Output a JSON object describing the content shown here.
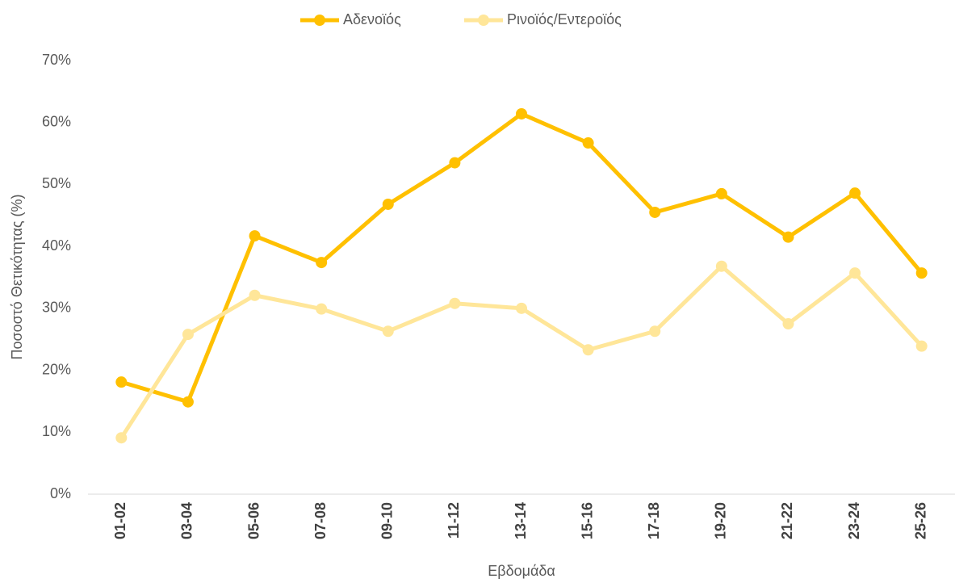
{
  "chart_data": {
    "type": "line",
    "x_label": "Εβδομάδα",
    "y_label": "Ποσοστό Θετικότητας (%)",
    "categories": [
      "01-02",
      "03-04",
      "05-06",
      "07-08",
      "09-10",
      "11-12",
      "13-14",
      "15-16",
      "17-18",
      "19-20",
      "21-22",
      "23-24",
      "25-26"
    ],
    "series": [
      {
        "name": "Αδενοϊός",
        "color": "#ffc000",
        "values": [
          18.1,
          14.9,
          41.7,
          37.4,
          46.8,
          53.5,
          61.4,
          56.7,
          45.5,
          48.5,
          41.5,
          48.6,
          35.7
        ]
      },
      {
        "name": "Ρινοϊός/Εντεροϊός",
        "color": "#ffe699",
        "values": [
          9.1,
          25.8,
          32.1,
          29.9,
          26.3,
          30.8,
          30.0,
          23.3,
          26.3,
          36.8,
          27.5,
          35.7,
          23.9
        ]
      }
    ],
    "ylim": [
      0,
      70
    ],
    "yticks": [
      {
        "value": 0,
        "label": "0%"
      },
      {
        "value": 10,
        "label": "10%"
      },
      {
        "value": 20,
        "label": "20%"
      },
      {
        "value": 30,
        "label": "30%"
      },
      {
        "value": 40,
        "label": "40%"
      },
      {
        "value": 50,
        "label": "50%"
      },
      {
        "value": 60,
        "label": "60%"
      },
      {
        "value": 70,
        "label": "70%"
      }
    ],
    "grid": false,
    "legend": "top"
  }
}
